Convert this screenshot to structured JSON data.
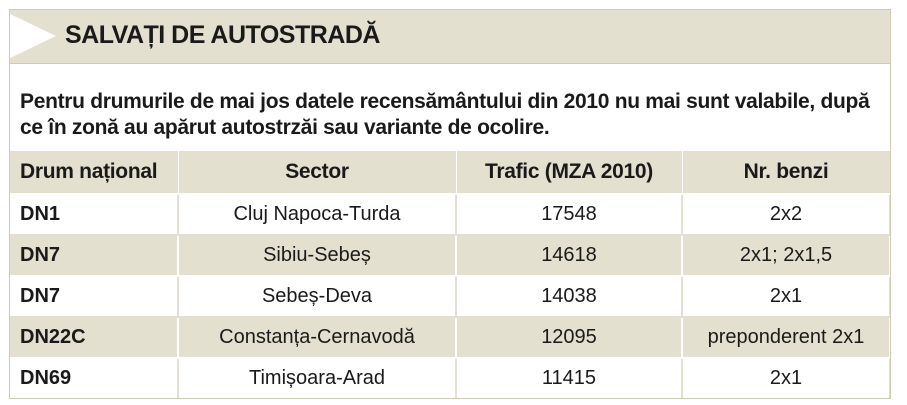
{
  "title": "SALVAȚI DE AUTOSTRADĂ",
  "intro": "Pentru drumurile de mai jos datele recensământului din 2010 nu mai sunt valabile, după ce în zonă au apărut autostrzăi sau variante de ocolire.",
  "table": {
    "headers": [
      "Drum național",
      "Sector",
      "Trafic (MZA 2010)",
      "Nr. benzi"
    ],
    "rows": [
      {
        "road": "DN1",
        "sector": "Cluj Napoca-Turda",
        "traffic": "17548",
        "lanes": "2x2"
      },
      {
        "road": "DN7",
        "sector": "Sibiu-Sebeș",
        "traffic": "14618",
        "lanes": "2x1; 2x1,5"
      },
      {
        "road": "DN7",
        "sector": "Sebeș-Deva",
        "traffic": "14038",
        "lanes": "2x1"
      },
      {
        "road": "DN22C",
        "sector": "Constanța-Cernavodă",
        "traffic": "12095",
        "lanes": "preponderent 2x1"
      },
      {
        "road": "DN69",
        "sector": "Timișoara-Arad",
        "traffic": "11415",
        "lanes": "2x1"
      }
    ]
  },
  "colors": {
    "header_bg": "#e3e0cf",
    "text": "#1a1a1a"
  }
}
